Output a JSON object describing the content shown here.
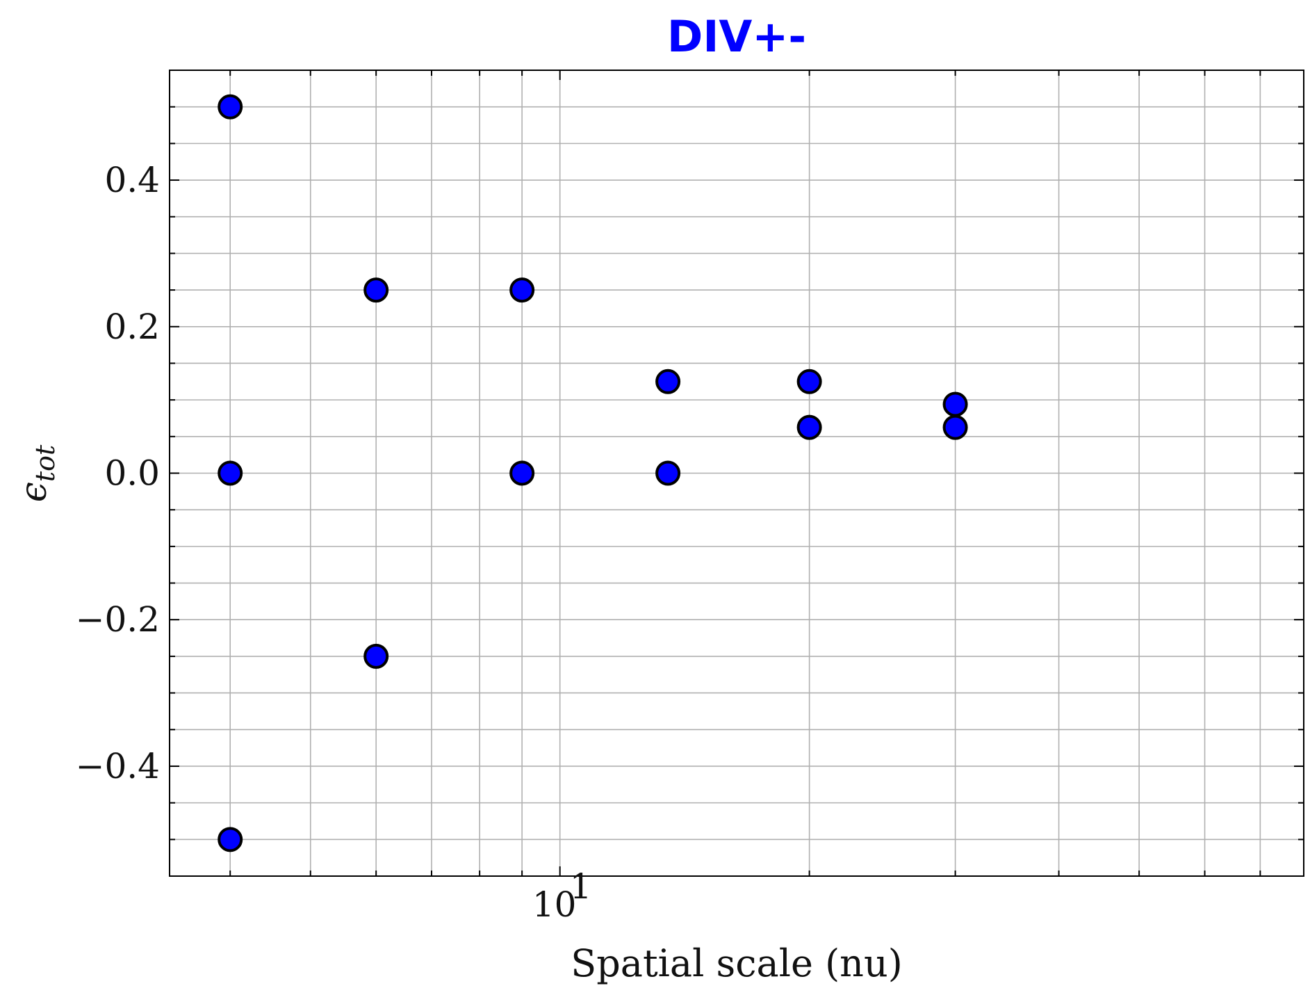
{
  "chart_data": {
    "type": "scatter",
    "title": "DIV+-",
    "title_color": "#0000ff",
    "xlabel": "Spatial scale (nu)",
    "ylabel": "ϵ",
    "ylabel_subscript": "tot",
    "x_scale": "log",
    "xlim": [
      3.38,
      79.0
    ],
    "ylim": [
      -0.55,
      0.55
    ],
    "grid": true,
    "x_tick_labels": [
      {
        "value": 10,
        "base": "10",
        "exponent": "1"
      }
    ],
    "y_ticks": [
      -0.4,
      -0.2,
      0.0,
      0.2,
      0.4
    ],
    "y_tick_labels": [
      "−0.4",
      "−0.2",
      "0.0",
      "0.2",
      "0.4"
    ],
    "marker_color": "#0000ff",
    "marker_edge_color": "#000000",
    "points": [
      {
        "x": 4,
        "y": 0.5
      },
      {
        "x": 4,
        "y": 0.0
      },
      {
        "x": 4,
        "y": -0.5
      },
      {
        "x": 6,
        "y": 0.25
      },
      {
        "x": 6,
        "y": -0.25
      },
      {
        "x": 9,
        "y": 0.25
      },
      {
        "x": 9,
        "y": 0.0
      },
      {
        "x": 13.5,
        "y": 0.125
      },
      {
        "x": 13.5,
        "y": 0.0
      },
      {
        "x": 20,
        "y": 0.125
      },
      {
        "x": 20,
        "y": 0.0625
      },
      {
        "x": 30,
        "y": 0.094
      },
      {
        "x": 30,
        "y": 0.0625
      }
    ]
  }
}
